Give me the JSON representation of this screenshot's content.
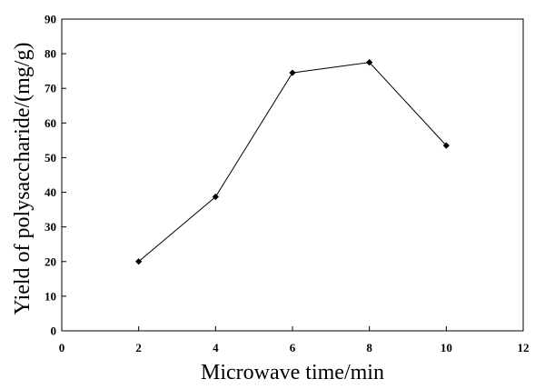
{
  "chart_data": {
    "type": "line",
    "title": "",
    "xlabel": "Microwave time/min",
    "ylabel": "Yield of polysaccharide/(mg/g)",
    "xlim": [
      0,
      12
    ],
    "ylim": [
      0,
      90
    ],
    "x_ticks": [
      "0",
      "2",
      "4",
      "6",
      "8",
      "10",
      "12"
    ],
    "y_ticks": [
      "0",
      "10",
      "20",
      "30",
      "40",
      "50",
      "60",
      "70",
      "80",
      "90"
    ],
    "grid": false,
    "legend": "none",
    "marker": "diamond",
    "series": [
      {
        "x": [
          2,
          4,
          6,
          8,
          10
        ],
        "values": [
          20.0,
          38.7,
          74.5,
          77.5,
          53.5
        ]
      }
    ],
    "colors": {
      "line": "#000000",
      "marker": "#000000",
      "axis": "#000000"
    }
  }
}
